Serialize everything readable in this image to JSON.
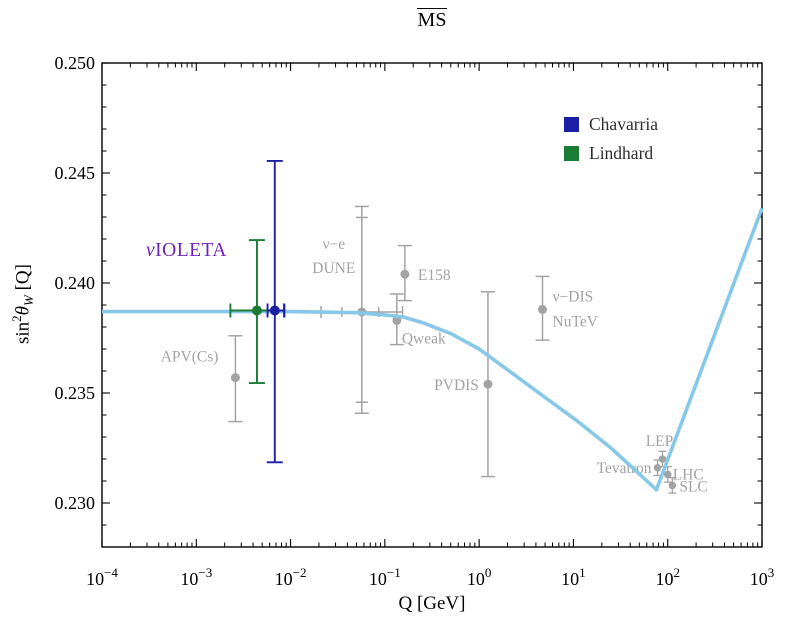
{
  "title": "MS",
  "axis": {
    "xlabel": "Q [GeV]",
    "ylabel_parts": {
      "pre": "sin",
      "sup": "2",
      "theta": "θ",
      "sub": "W",
      "post": " [Q]"
    }
  },
  "legend": {
    "items": [
      {
        "label": "Chavarria",
        "color": "#1B1FA6"
      },
      {
        "label": "Lindhard",
        "color": "#1A7C35"
      }
    ]
  },
  "annotation": {
    "text": "νIOLETA",
    "color": "#7021C2"
  },
  "chart_data": {
    "type": "scatter",
    "title": "MS (MS-bar scheme)",
    "xlabel": "Q [GeV]",
    "ylabel": "sin²θ_W [Q]",
    "x_scale": "log",
    "xlim": [
      0.0001,
      1000
    ],
    "ylim": [
      0.228,
      0.25
    ],
    "x_major_tick_exponents": [
      -4,
      -3,
      -2,
      -1,
      0,
      1,
      2,
      3
    ],
    "y_major_ticks": [
      0.25,
      0.245,
      0.24,
      0.235,
      0.23
    ],
    "y_tick_labels": [
      "0.250",
      "0.245",
      "0.240",
      "0.235",
      "0.230"
    ],
    "y_minor_step": 0.001,
    "grid": false,
    "legend_position": "upper right",
    "colors": {
      "curve": "#87C8E9",
      "gray": "#A3A3A3",
      "frame": "#000000"
    },
    "curve": {
      "name": "SM running prediction",
      "color": "#87C8E9",
      "points": [
        [
          0.0001,
          0.2387
        ],
        [
          0.01,
          0.2387
        ],
        [
          0.05,
          0.23865
        ],
        [
          0.1,
          0.23855
        ],
        [
          0.158,
          0.23845
        ],
        [
          0.25,
          0.2382
        ],
        [
          0.5,
          0.2377
        ],
        [
          1.0,
          0.237
        ],
        [
          2.24,
          0.2359
        ],
        [
          5.0,
          0.2348
        ],
        [
          11.2,
          0.2337
        ],
        [
          25.0,
          0.2325
        ],
        [
          45.0,
          0.2315
        ],
        [
          75.9,
          0.2306
        ],
        [
          1000,
          0.2434
        ]
      ]
    },
    "measurements": [
      {
        "id": "apv-cs",
        "label": "APV(Cs)",
        "q": 0.0026,
        "y": 0.2357,
        "err_up": 0.0019,
        "err_dn": 0.002,
        "label_anchor": "end",
        "label_dx": -17,
        "label_dy": -16
      },
      {
        "id": "nu-e-dune",
        "label_lines": [
          "ν−e",
          "DUNE"
        ],
        "q": 0.057,
        "y": 0.23868,
        "err_up": 0.0048,
        "err_dn": 0.0046,
        "err_up_inner": 0.0043,
        "err_dn_inner": 0.0041,
        "x_lo": 0.021,
        "x_hi": 0.154,
        "x_lo_inner": 0.035,
        "x_hi_inner": 0.086,
        "label_anchor": "middle",
        "label_dx": -28,
        "label_dy": -63,
        "label_lh": 24
      },
      {
        "id": "qweak",
        "label": "Qweak",
        "q": 0.134,
        "y": 0.2383,
        "err_up": 0.0012,
        "err_dn": 0.0011,
        "label_anchor": "start",
        "label_dx": 5,
        "label_dy": 23
      },
      {
        "id": "e158",
        "label": "E158",
        "q": 0.163,
        "y": 0.2404,
        "err_up": 0.0013,
        "err_dn": 0.0012,
        "label_anchor": "start",
        "label_dx": 13,
        "label_dy": 6
      },
      {
        "id": "pvdis",
        "label": "PVDIS",
        "q": 1.24,
        "y": 0.2354,
        "err_up": 0.0042,
        "err_dn": 0.0042,
        "label_anchor": "end",
        "label_dx": -9,
        "label_dy": 6
      },
      {
        "id": "nu-dis-nutev",
        "label_lines": [
          "ν−DIS",
          "NuTeV"
        ],
        "q": 4.7,
        "y": 0.2388,
        "err_up": 0.0015,
        "err_dn": 0.0014,
        "label_anchor": "start",
        "label_dx": 10,
        "label_dy": -8,
        "label_lh": 25
      },
      {
        "id": "lep",
        "label": "LEP",
        "q": 88,
        "y": 0.232,
        "err_up": 0.00035,
        "err_dn": 0.00035,
        "small": true,
        "label_anchor": "middle",
        "label_dx": -3,
        "label_dy": -13
      },
      {
        "id": "tevatron",
        "label": "Tevatron",
        "q": 78,
        "y": 0.2316,
        "err_up": 0.00035,
        "err_dn": 0.00035,
        "small": true,
        "label_anchor": "end",
        "label_dx": -6,
        "label_dy": 5
      },
      {
        "id": "lhc",
        "label": "LHC",
        "q": 100,
        "y": 0.2313,
        "err_up": 0.00035,
        "err_dn": 0.00035,
        "small": true,
        "label_anchor": "start",
        "label_dx": 5,
        "label_dy": 5
      },
      {
        "id": "slc",
        "label": "SLC",
        "q": 112,
        "y": 0.2308,
        "err_up": 0.00035,
        "err_dn": 0.00035,
        "small": true,
        "label_anchor": "start",
        "label_dx": 7,
        "label_dy": 6
      }
    ],
    "highlights": [
      {
        "id": "lindhard",
        "name": "Lindhard",
        "color": "#1A7C35",
        "q": 0.0044,
        "y": 0.23875,
        "err_up": 0.0032,
        "err_dn": 0.0033,
        "x_lo": 0.0023,
        "x_hi": 0.0085
      },
      {
        "id": "chavarria",
        "name": "Chavarria",
        "color": "#1B1FA6",
        "q": 0.0068,
        "y": 0.23875,
        "err_up": 0.0068,
        "err_dn": 0.0069,
        "x_lo": 0.0057,
        "x_hi": 0.0086
      }
    ]
  }
}
